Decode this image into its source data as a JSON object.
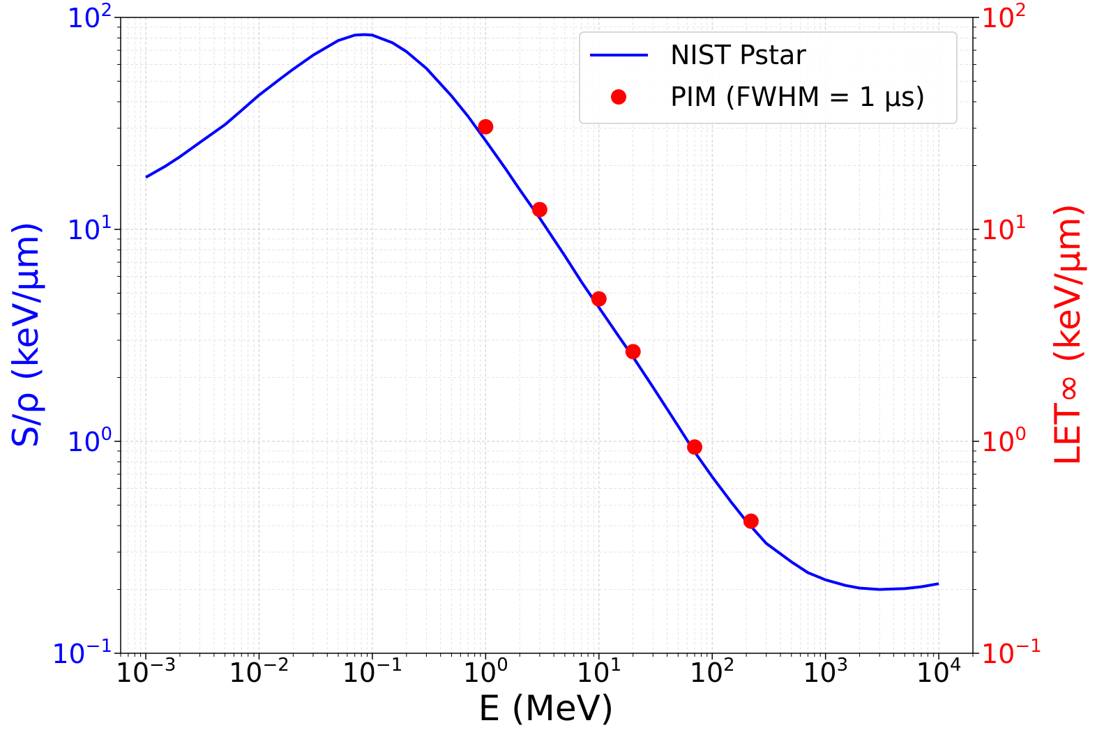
{
  "chart_data": {
    "type": "line",
    "xscale": "log",
    "yscale": "log",
    "xlabel": "E (MeV)",
    "ylabel_left": "S/ρ (keV/μm)",
    "ylabel_right": "LET∞ (keV/μm)",
    "xlim": [
      0.0006,
      20000
    ],
    "ylim_left": [
      0.1,
      100
    ],
    "ylim_right": [
      0.1,
      100
    ],
    "grid": true,
    "legend_position": "top-right",
    "x_ticks": [
      {
        "base": "10",
        "exp": "−3",
        "value": 0.001
      },
      {
        "base": "10",
        "exp": "−2",
        "value": 0.01
      },
      {
        "base": "10",
        "exp": "−1",
        "value": 0.1
      },
      {
        "base": "10",
        "exp": "0",
        "value": 1
      },
      {
        "base": "10",
        "exp": "1",
        "value": 10
      },
      {
        "base": "10",
        "exp": "2",
        "value": 100
      },
      {
        "base": "10",
        "exp": "3",
        "value": 1000
      },
      {
        "base": "10",
        "exp": "4",
        "value": 10000
      }
    ],
    "y_ticks_left": [
      {
        "base": "10",
        "exp": "−1",
        "value": 0.1
      },
      {
        "base": "10",
        "exp": "0",
        "value": 1
      },
      {
        "base": "10",
        "exp": "1",
        "value": 10
      },
      {
        "base": "10",
        "exp": "2",
        "value": 100
      }
    ],
    "y_ticks_right": [
      {
        "base": "10",
        "exp": "−1",
        "value": 0.1
      },
      {
        "base": "10",
        "exp": "0",
        "value": 1
      },
      {
        "base": "10",
        "exp": "1",
        "value": 10
      },
      {
        "base": "10",
        "exp": "2",
        "value": 100
      }
    ],
    "series": [
      {
        "name": "NIST Pstar",
        "style": "line",
        "color": "#0000ff",
        "axis": "left",
        "x": [
          0.001,
          0.0015,
          0.002,
          0.003,
          0.005,
          0.007,
          0.01,
          0.015,
          0.02,
          0.03,
          0.05,
          0.07,
          0.085,
          0.1,
          0.15,
          0.2,
          0.3,
          0.5,
          0.7,
          1,
          1.5,
          2,
          3,
          5,
          7,
          10,
          15,
          20,
          30,
          50,
          70,
          100,
          150,
          200,
          300,
          500,
          700,
          1000,
          1500,
          2000,
          3000,
          5000,
          7000,
          10000
        ],
        "y": [
          17.6,
          19.9,
          22.0,
          25.7,
          31.2,
          36.4,
          43.0,
          50.8,
          57.0,
          66.4,
          77.8,
          82.5,
          83.0,
          82.5,
          76.0,
          69.0,
          57.5,
          42.6,
          34.1,
          26.2,
          19.3,
          15.4,
          11.3,
          7.5,
          5.66,
          4.28,
          3.12,
          2.5,
          1.8,
          1.18,
          0.89,
          0.68,
          0.51,
          0.42,
          0.33,
          0.27,
          0.24,
          0.222,
          0.209,
          0.203,
          0.2,
          0.202,
          0.206,
          0.213
        ]
      },
      {
        "name": "PIM (FWHM = 1 μs)",
        "style": "markers",
        "color": "#ff0000",
        "axis": "right",
        "x": [
          1.0,
          3.0,
          10.0,
          20.0,
          70.0,
          220.0
        ],
        "y": [
          30.5,
          12.4,
          4.7,
          2.65,
          0.94,
          0.42
        ]
      }
    ]
  }
}
